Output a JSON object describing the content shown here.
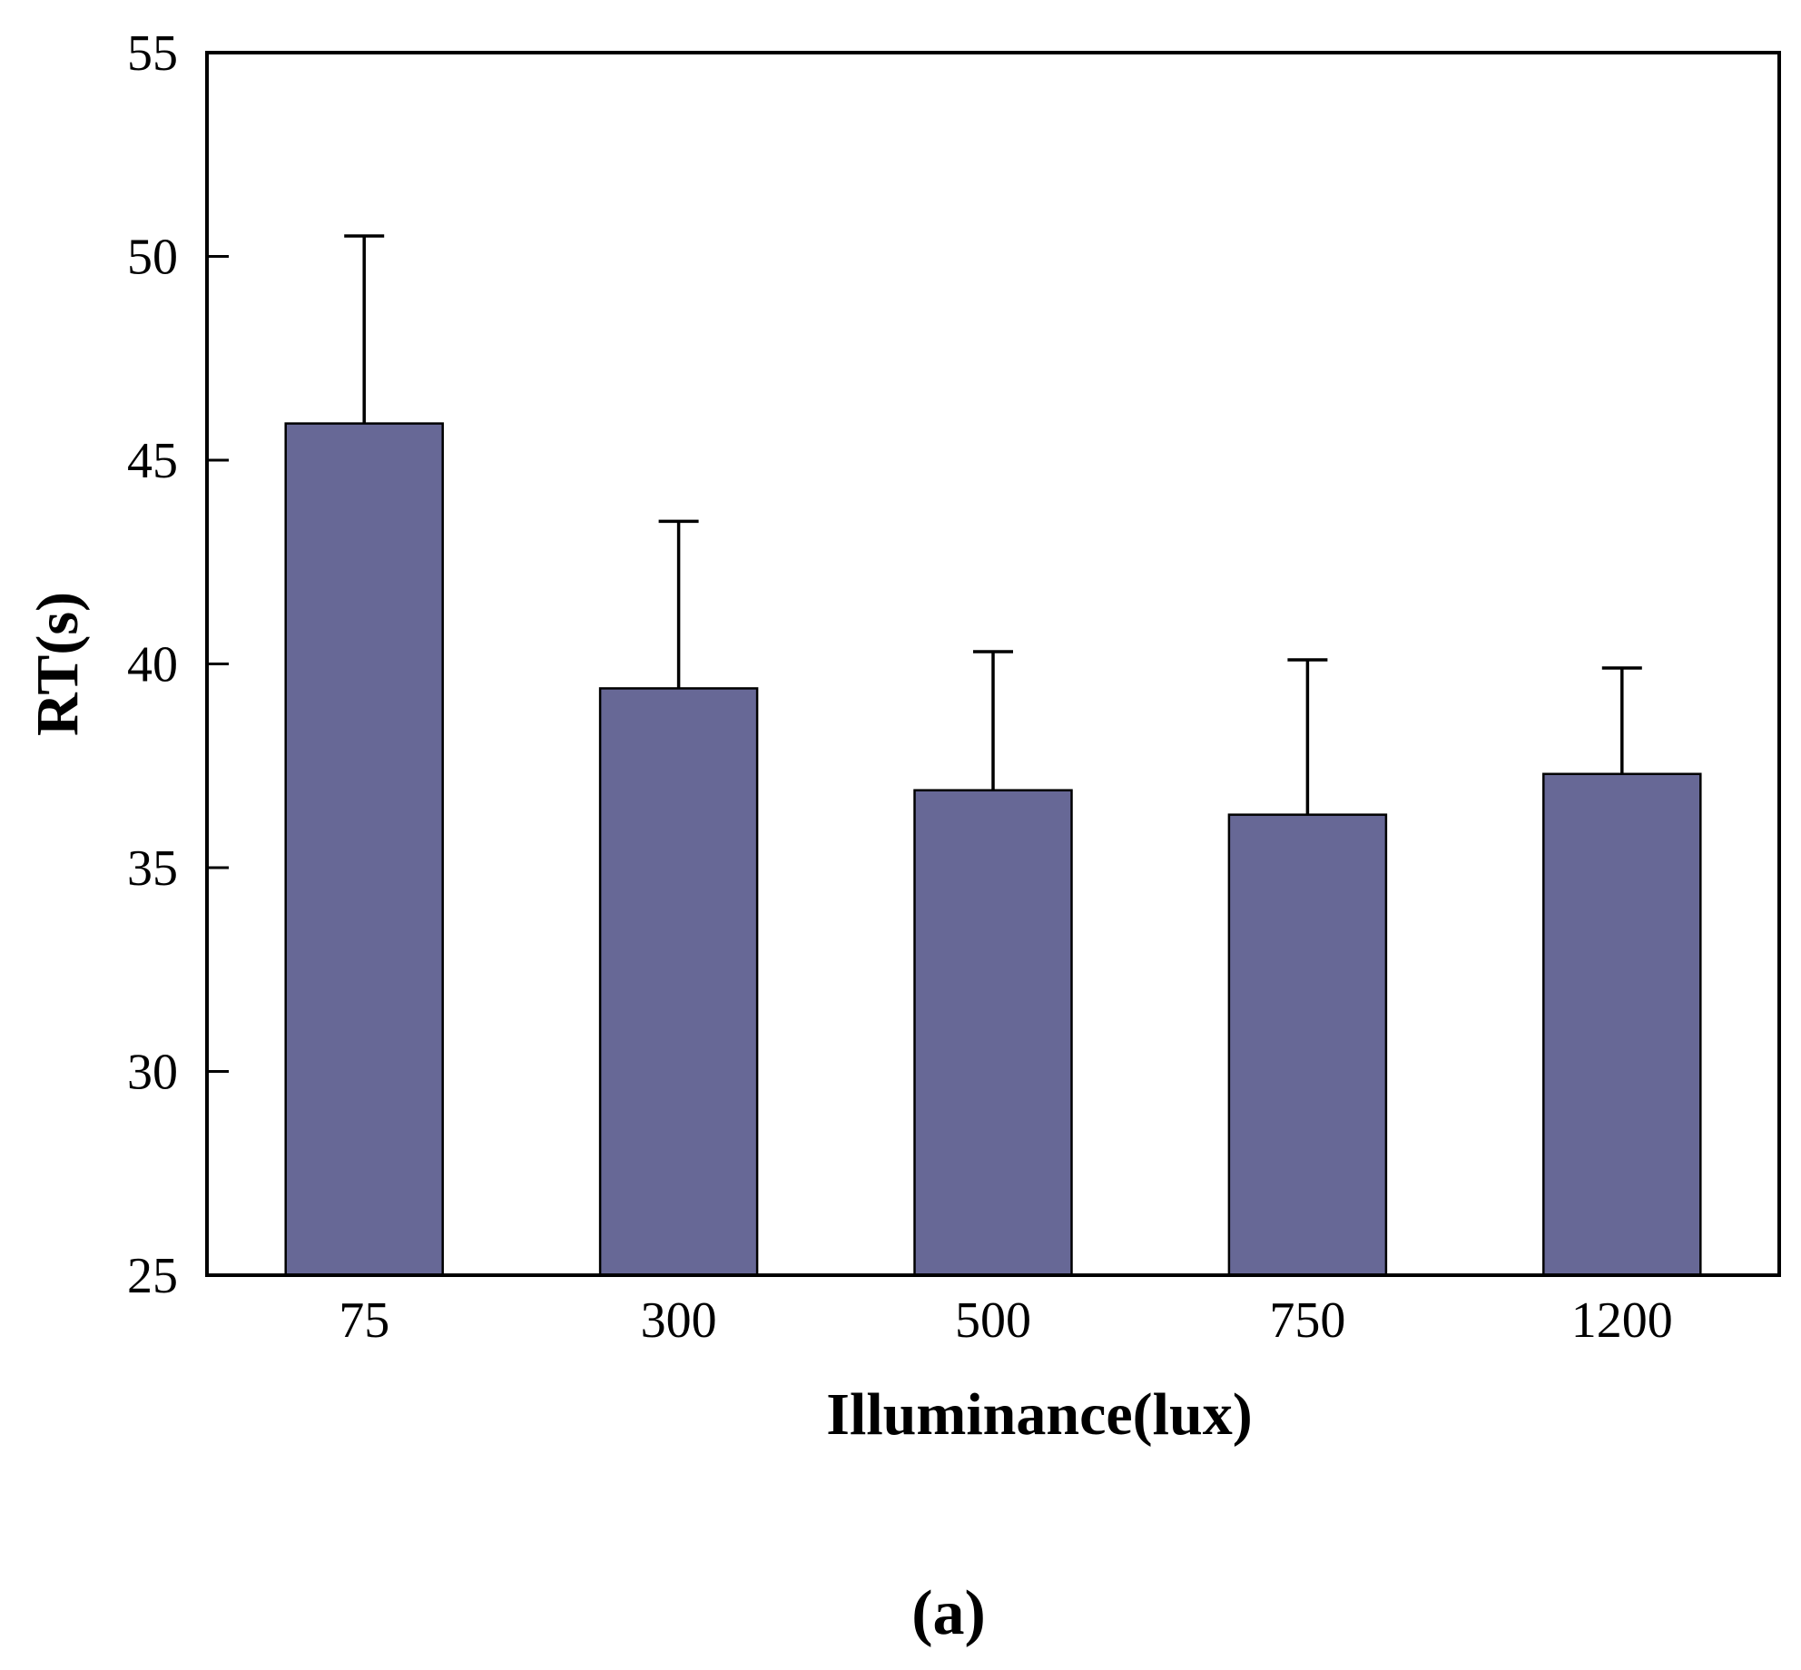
{
  "chart_data": {
    "type": "bar",
    "categories": [
      "75",
      "300",
      "500",
      "750",
      "1200"
    ],
    "series": [
      {
        "values": [
          45.9,
          39.4,
          36.9,
          36.3,
          37.3
        ],
        "error_upper": [
          50.5,
          43.5,
          40.3,
          40.1,
          39.9
        ]
      }
    ],
    "xlabel": "Illuminance(lux)",
    "ylabel": "RT(s)",
    "ylim": [
      25,
      55
    ],
    "yticks": [
      "25",
      "30",
      "35",
      "40",
      "45",
      "50",
      "55"
    ],
    "grid": false,
    "bar_color": "#676896",
    "caption": "(a)"
  }
}
